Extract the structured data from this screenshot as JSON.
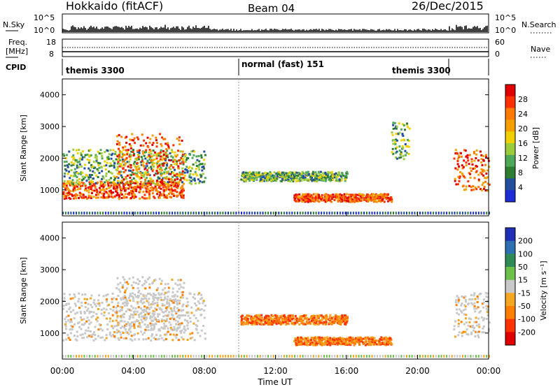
{
  "header": {
    "station": "Hokkaido (fitACF)",
    "beam": "Beam 04",
    "date": "26/Dec/2015"
  },
  "noise_panel": {
    "left_label": "N.Sky",
    "right_label": "N.Search",
    "left_ticks": [
      "10^5",
      "10^0"
    ],
    "right_ticks": [
      "10^5",
      "10^0"
    ]
  },
  "freq_panel": {
    "left_label_1": "Freq.",
    "left_label_2": "[MHz]",
    "right_label": "Nave",
    "left_ticks": [
      "18",
      "8"
    ],
    "right_ticks": [
      "60",
      "0"
    ]
  },
  "cpid_panel": {
    "label": "CPID",
    "modes": [
      "themis 3300",
      "normal (fast) 151",
      "themis 3300"
    ]
  },
  "chart_data": [
    {
      "type": "heatmap",
      "title": "",
      "xlabel": "Time UT",
      "ylabel": "Slant Range [km]",
      "yticks": [
        "4000",
        "3000",
        "2000",
        "1000"
      ],
      "xticks": [
        "00:00",
        "04:00",
        "08:00",
        "12:00",
        "16:00",
        "20:00",
        "00:00"
      ],
      "xlim_hours": [
        0,
        24
      ],
      "ylim_km": [
        180,
        4500
      ],
      "colorbar": {
        "label": "Power [dB]",
        "ticks": [
          "28",
          "24",
          "20",
          "16",
          "12",
          "8",
          "4"
        ],
        "colors": [
          "#e00000",
          "#ff3000",
          "#ff7a00",
          "#f5a000",
          "#f0d000",
          "#9ccc3c",
          "#4fa85a",
          "#2e7d32",
          "#244f9e",
          "#1e2ed6"
        ]
      },
      "echo_regions": [
        {
          "t0": 0.0,
          "t1": 6.8,
          "r0": 750,
          "r1": 1300,
          "level": "high"
        },
        {
          "t0": 0.0,
          "t1": 8.0,
          "r0": 1200,
          "r1": 2300,
          "level": "mid"
        },
        {
          "t0": 3.0,
          "t1": 6.8,
          "r0": 1000,
          "r1": 2800,
          "level": "high"
        },
        {
          "t0": 13.0,
          "t1": 18.5,
          "r0": 650,
          "r1": 900,
          "level": "high"
        },
        {
          "t0": 22.0,
          "t1": 24.0,
          "r0": 1000,
          "r1": 2300,
          "level": "high"
        },
        {
          "t0": 10.0,
          "t1": 16.0,
          "r0": 1300,
          "r1": 1600,
          "level": "mid"
        },
        {
          "t0": 18.5,
          "t1": 19.5,
          "r0": 2000,
          "r1": 3200,
          "level": "mid"
        }
      ]
    },
    {
      "type": "heatmap",
      "title": "",
      "xlabel": "Time UT",
      "ylabel": "Slant Range [km]",
      "yticks": [
        "4000",
        "3000",
        "2000",
        "1000"
      ],
      "xticks": [
        "00:00",
        "04:00",
        "08:00",
        "12:00",
        "16:00",
        "20:00",
        "00:00"
      ],
      "xlim_hours": [
        0,
        24
      ],
      "ylim_km": [
        180,
        4500
      ],
      "colorbar": {
        "label": "Velocity [m s⁻¹]",
        "ticks": [
          "200",
          "100",
          "50",
          "15",
          "-15",
          "-50",
          "-100",
          "-200"
        ],
        "colors": [
          "#1f2fb8",
          "#2d6fb0",
          "#2e8b57",
          "#6cc04a",
          "#c8c8c8",
          "#f5a623",
          "#ff7f00",
          "#ff3300",
          "#e00000"
        ]
      },
      "echo_regions": [
        {
          "t0": 0.0,
          "t1": 8.0,
          "r0": 800,
          "r1": 2300,
          "level": "zero"
        },
        {
          "t0": 3.0,
          "t1": 6.8,
          "r0": 1100,
          "r1": 2800,
          "level": "zero"
        },
        {
          "t0": 13.0,
          "t1": 18.5,
          "r0": 650,
          "r1": 900,
          "level": "negative"
        },
        {
          "t0": 22.0,
          "t1": 24.0,
          "r0": 900,
          "r1": 2300,
          "level": "zero"
        },
        {
          "t0": 10.0,
          "t1": 16.0,
          "r0": 1300,
          "r1": 1600,
          "level": "negative"
        }
      ]
    }
  ]
}
